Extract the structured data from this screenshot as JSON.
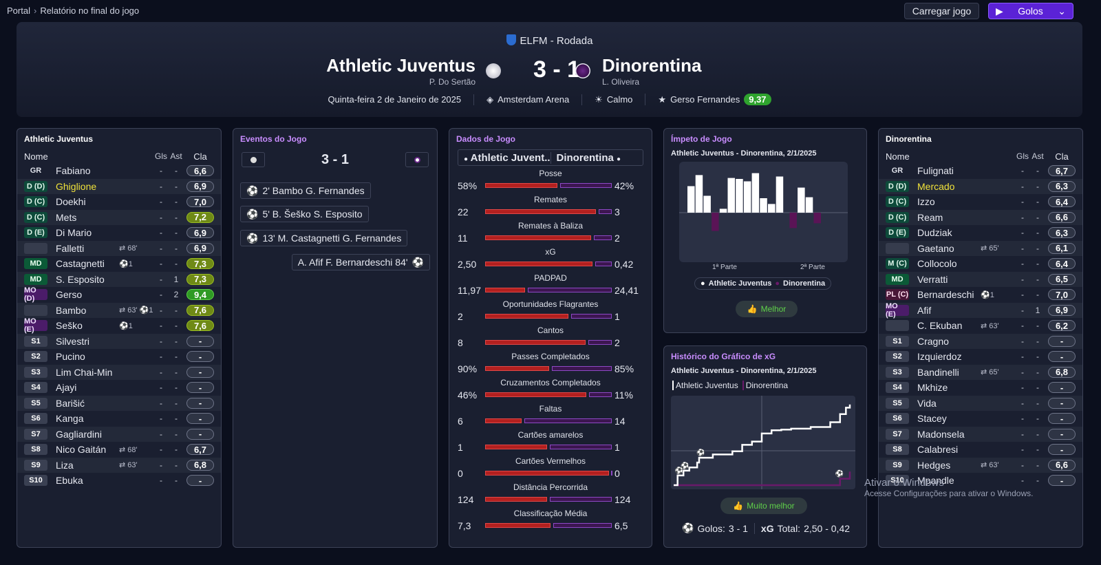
{
  "breadcrumb": {
    "root": "Portal",
    "current": "Relatório no final do jogo"
  },
  "toolbar": {
    "load": "Carregar jogo",
    "goals": "Golos"
  },
  "header": {
    "competition": "ELFM - Rodada",
    "home": "Athletic Juventus",
    "away": "Dinorentina",
    "score": "3 - 1",
    "home_coach": "P. Do Sertão",
    "away_coach": "L. Oliveira",
    "date": "Quinta-feira 2 de Janeiro de 2025",
    "stadium": "Amsterdam Arena",
    "weather": "Calmo",
    "motm": "Gerso Fernandes",
    "motm_rating": "9,37"
  },
  "cols": {
    "name": "Nome",
    "gls": "Gls",
    "ast": "Ast",
    "rating": "Cla"
  },
  "home_lineup": {
    "title": "Athletic Juventus",
    "players": [
      {
        "pos": "GR",
        "type": "gk",
        "name": "Fabiano",
        "ev": "",
        "g": "-",
        "a": "-",
        "r": "6,6",
        "rc": ""
      },
      {
        "pos": "D (D)",
        "type": "def",
        "name": "Ghiglione",
        "hl": true,
        "ev": "",
        "g": "-",
        "a": "-",
        "r": "6,9",
        "rc": ""
      },
      {
        "pos": "D (C)",
        "type": "def",
        "name": "Doekhi",
        "ev": "",
        "g": "-",
        "a": "-",
        "r": "7,0",
        "rc": ""
      },
      {
        "pos": "D (C)",
        "type": "def",
        "name": "Mets",
        "ev": "",
        "g": "-",
        "a": "-",
        "r": "7,2",
        "rc": "g1"
      },
      {
        "pos": "D (E)",
        "type": "def",
        "name": "Di Mario",
        "ev": "",
        "g": "-",
        "a": "-",
        "r": "6,9",
        "rc": ""
      },
      {
        "pos": "",
        "type": "empty",
        "name": "Falletti",
        "ev": "⇄ 68'",
        "g": "-",
        "a": "-",
        "r": "6,9",
        "rc": ""
      },
      {
        "pos": "MD",
        "type": "mid",
        "name": "Castagnetti",
        "ev": "⚽1",
        "g": "-",
        "a": "-",
        "r": "7,3",
        "rc": "g1"
      },
      {
        "pos": "MD",
        "type": "mid",
        "name": "S. Esposito",
        "ev": "",
        "g": "-",
        "a": "1",
        "r": "7,3",
        "rc": "g1"
      },
      {
        "pos": "MO (D)",
        "type": "am",
        "name": "Gerso",
        "ev": "",
        "g": "-",
        "a": "2",
        "r": "9,4",
        "rc": "g2"
      },
      {
        "pos": "",
        "type": "empty",
        "name": "Bambo",
        "ev": "⇄ 63' ⚽1",
        "g": "-",
        "a": "-",
        "r": "7,6",
        "rc": "g1"
      },
      {
        "pos": "MO (E)",
        "type": "am",
        "name": "Seško",
        "ev": "⚽1",
        "g": "-",
        "a": "-",
        "r": "7,6",
        "rc": "g1"
      },
      {
        "pos": "S1",
        "type": "sub",
        "name": "Silvestri",
        "ev": "",
        "g": "-",
        "a": "-",
        "r": "-",
        "rc": ""
      },
      {
        "pos": "S2",
        "type": "sub",
        "name": "Pucino",
        "ev": "",
        "g": "-",
        "a": "-",
        "r": "-",
        "rc": ""
      },
      {
        "pos": "S3",
        "type": "sub",
        "name": "Lim Chai-Min",
        "ev": "",
        "g": "-",
        "a": "-",
        "r": "-",
        "rc": ""
      },
      {
        "pos": "S4",
        "type": "sub",
        "name": "Ajayi",
        "ev": "",
        "g": "-",
        "a": "-",
        "r": "-",
        "rc": ""
      },
      {
        "pos": "S5",
        "type": "sub",
        "name": "Barišić",
        "ev": "",
        "g": "-",
        "a": "-",
        "r": "-",
        "rc": ""
      },
      {
        "pos": "S6",
        "type": "sub",
        "name": "Kanga",
        "ev": "",
        "g": "-",
        "a": "-",
        "r": "-",
        "rc": ""
      },
      {
        "pos": "S7",
        "type": "sub",
        "name": "Gagliardini",
        "ev": "",
        "g": "-",
        "a": "-",
        "r": "-",
        "rc": ""
      },
      {
        "pos": "S8",
        "type": "sub",
        "name": "Nico Gaitán",
        "ev": "⇄ 68'",
        "g": "-",
        "a": "-",
        "r": "6,7",
        "rc": ""
      },
      {
        "pos": "S9",
        "type": "sub",
        "name": "Liza",
        "ev": "⇄ 63'",
        "g": "-",
        "a": "-",
        "r": "6,8",
        "rc": ""
      },
      {
        "pos": "S10",
        "type": "sub",
        "name": "Ebuka",
        "ev": "",
        "g": "-",
        "a": "-",
        "r": "-",
        "rc": ""
      }
    ]
  },
  "away_lineup": {
    "title": "Dinorentina",
    "players": [
      {
        "pos": "GR",
        "type": "gk",
        "name": "Fulignati",
        "ev": "",
        "g": "-",
        "a": "-",
        "r": "6,7",
        "rc": ""
      },
      {
        "pos": "D (D)",
        "type": "def",
        "name": "Mercado",
        "hl": true,
        "ev": "",
        "g": "-",
        "a": "-",
        "r": "6,3",
        "rc": ""
      },
      {
        "pos": "D (C)",
        "type": "def",
        "name": "Izzo",
        "ev": "",
        "g": "-",
        "a": "-",
        "r": "6,4",
        "rc": ""
      },
      {
        "pos": "D (C)",
        "type": "def",
        "name": "Ream",
        "ev": "",
        "g": "-",
        "a": "-",
        "r": "6,6",
        "rc": ""
      },
      {
        "pos": "D (E)",
        "type": "def",
        "name": "Dudziak",
        "ev": "",
        "g": "-",
        "a": "-",
        "r": "6,3",
        "rc": ""
      },
      {
        "pos": "",
        "type": "empty",
        "name": "Gaetano",
        "ev": "⇄ 65'",
        "g": "-",
        "a": "-",
        "r": "6,1",
        "rc": ""
      },
      {
        "pos": "M (C)",
        "type": "def",
        "name": "Collocolo",
        "ev": "",
        "g": "-",
        "a": "-",
        "r": "6,4",
        "rc": ""
      },
      {
        "pos": "MD",
        "type": "mid",
        "name": "Verratti",
        "ev": "",
        "g": "-",
        "a": "-",
        "r": "6,5",
        "rc": ""
      },
      {
        "pos": "PL (C)",
        "type": "fw",
        "name": "Bernardeschi",
        "ev": "⚽1",
        "g": "-",
        "a": "-",
        "r": "7,0",
        "rc": ""
      },
      {
        "pos": "MO (E)",
        "type": "am",
        "name": "Afif",
        "ev": "",
        "g": "-",
        "a": "1",
        "r": "6,9",
        "rc": ""
      },
      {
        "pos": "",
        "type": "empty",
        "name": "C. Ekuban",
        "ev": "⇄ 63'",
        "g": "-",
        "a": "-",
        "r": "6,2",
        "rc": ""
      },
      {
        "pos": "S1",
        "type": "sub",
        "name": "Cragno",
        "ev": "",
        "g": "-",
        "a": "-",
        "r": "-",
        "rc": ""
      },
      {
        "pos": "S2",
        "type": "sub",
        "name": "Izquierdoz",
        "ev": "",
        "g": "-",
        "a": "-",
        "r": "-",
        "rc": ""
      },
      {
        "pos": "S3",
        "type": "sub",
        "name": "Bandinelli",
        "ev": "⇄ 65'",
        "g": "-",
        "a": "-",
        "r": "6,8",
        "rc": ""
      },
      {
        "pos": "S4",
        "type": "sub",
        "name": "Mkhize",
        "ev": "",
        "g": "-",
        "a": "-",
        "r": "-",
        "rc": ""
      },
      {
        "pos": "S5",
        "type": "sub",
        "name": "Vida",
        "ev": "",
        "g": "-",
        "a": "-",
        "r": "-",
        "rc": ""
      },
      {
        "pos": "S6",
        "type": "sub",
        "name": "Stacey",
        "ev": "",
        "g": "-",
        "a": "-",
        "r": "-",
        "rc": ""
      },
      {
        "pos": "S7",
        "type": "sub",
        "name": "Madonsela",
        "ev": "",
        "g": "-",
        "a": "-",
        "r": "-",
        "rc": ""
      },
      {
        "pos": "S8",
        "type": "sub",
        "name": "Calabresi",
        "ev": "",
        "g": "-",
        "a": "-",
        "r": "-",
        "rc": ""
      },
      {
        "pos": "S9",
        "type": "sub",
        "name": "Hedges",
        "ev": "⇄ 63'",
        "g": "-",
        "a": "-",
        "r": "6,6",
        "rc": ""
      },
      {
        "pos": "S10",
        "type": "sub",
        "name": "Mpandle",
        "ev": "",
        "g": "-",
        "a": "-",
        "r": "-",
        "rc": ""
      }
    ]
  },
  "events": {
    "title": "Eventos do Jogo",
    "score": "3 - 1",
    "items": [
      {
        "text": "2' Bambo G. Fernandes",
        "side": "home"
      },
      {
        "text": "5' B. Šeško S. Esposito",
        "side": "home"
      },
      {
        "text": "13' M. Castagnetti G. Fernandes",
        "side": "home"
      },
      {
        "text": "A. Afif F. Bernardeschi 84'",
        "side": "away"
      }
    ]
  },
  "match_stats": {
    "title": "Dados de Jogo",
    "home": "Athletic Juvent...",
    "away": "Dinorentina",
    "rows": [
      {
        "label": "Posse",
        "l": "58%",
        "r": "42%",
        "lv": 58,
        "rv": 42
      },
      {
        "label": "Remates",
        "l": "22",
        "r": "3",
        "lv": 22,
        "rv": 3
      },
      {
        "label": "Remates à Baliza",
        "l": "11",
        "r": "2",
        "lv": 11,
        "rv": 2
      },
      {
        "label": "xG",
        "l": "2,50",
        "r": "0,42",
        "lv": 2.5,
        "rv": 0.42
      },
      {
        "label": "PADPAD",
        "l": "11,97",
        "r": "24,41",
        "lv": 11.97,
        "rv": 24.41
      },
      {
        "label": "Oportunidades Flagrantes",
        "l": "2",
        "r": "1",
        "lv": 2,
        "rv": 1
      },
      {
        "label": "Cantos",
        "l": "8",
        "r": "2",
        "lv": 8,
        "rv": 2
      },
      {
        "label": "Passes Completados",
        "l": "90%",
        "r": "85%",
        "lv": 90,
        "rv": 85
      },
      {
        "label": "Cruzamentos Completados",
        "l": "46%",
        "r": "11%",
        "lv": 46,
        "rv": 11
      },
      {
        "label": "Faltas",
        "l": "6",
        "r": "14",
        "lv": 6,
        "rv": 14
      },
      {
        "label": "Cartões amarelos",
        "l": "1",
        "r": "1",
        "lv": 1,
        "rv": 1
      },
      {
        "label": "Cartões Vermelhos",
        "l": "0",
        "r": "0",
        "lv": 0,
        "rv": 0
      },
      {
        "label": "Distância Percorrida",
        "l": "124",
        "r": "124",
        "lv": 124,
        "rv": 124
      },
      {
        "label": "Classificação Média",
        "l": "7,3",
        "r": "6,5",
        "lv": 7.3,
        "rv": 6.5
      }
    ]
  },
  "momentum": {
    "title": "Ímpeto de Jogo",
    "subtitle": "Athletic Juventus - Dinorentina, 2/1/2025",
    "first_half": "1ª Parte",
    "second_half": "2ª Parte",
    "legend_home": "Athletic Juventus",
    "legend_away": "Dinorentina",
    "verdict": "Melhor"
  },
  "xg_history": {
    "title": "Histórico do Gráfico de xG",
    "subtitle": "Athletic Juventus - Dinorentina, 2/1/2025",
    "legend_home": "Athletic Juventus",
    "legend_away": "Dinorentina",
    "verdict": "Muito melhor",
    "goals_label": "Golos:",
    "goals": "3 - 1",
    "xg_label": "xG",
    "xg_total_label": "Total:",
    "xg_total": "2,50 - 0,42"
  },
  "chart_data": [
    {
      "type": "bar",
      "title": "Ímpeto de Jogo",
      "series": [
        {
          "name": "Athletic Juventus",
          "values": [
            0.55,
            0.78,
            0.35,
            0,
            0.08,
            0.72,
            0.7,
            0.65,
            0.82,
            0.3,
            0.18,
            0.75,
            0,
            0.52,
            0.32,
            0
          ]
        },
        {
          "name": "Dinorentina",
          "values": [
            0,
            0,
            0,
            0.38,
            0,
            0,
            0,
            0,
            0,
            0,
            0,
            0,
            0.32,
            0,
            0,
            0.22
          ]
        }
      ]
    },
    {
      "type": "line",
      "title": "Histórico do Gráfico de xG",
      "series": [
        {
          "name": "Athletic Juventus",
          "x": [
            0,
            2,
            5,
            8,
            12,
            13,
            20,
            30,
            35,
            40,
            45,
            50,
            55,
            60,
            70,
            80,
            85,
            88,
            90
          ],
          "y": [
            0.0,
            0.3,
            0.45,
            0.55,
            0.7,
            0.85,
            0.95,
            1.05,
            1.25,
            1.35,
            1.6,
            1.7,
            1.72,
            1.75,
            1.8,
            1.95,
            2.2,
            2.4,
            2.5
          ]
        },
        {
          "name": "Dinorentina",
          "x": [
            0,
            84,
            85,
            90
          ],
          "y": [
            0,
            0,
            0.2,
            0.42
          ]
        }
      ]
    }
  ],
  "watermark": {
    "line1": "Ativar o Windows",
    "line2": "Acesse Configurações para ativar o Windows."
  }
}
